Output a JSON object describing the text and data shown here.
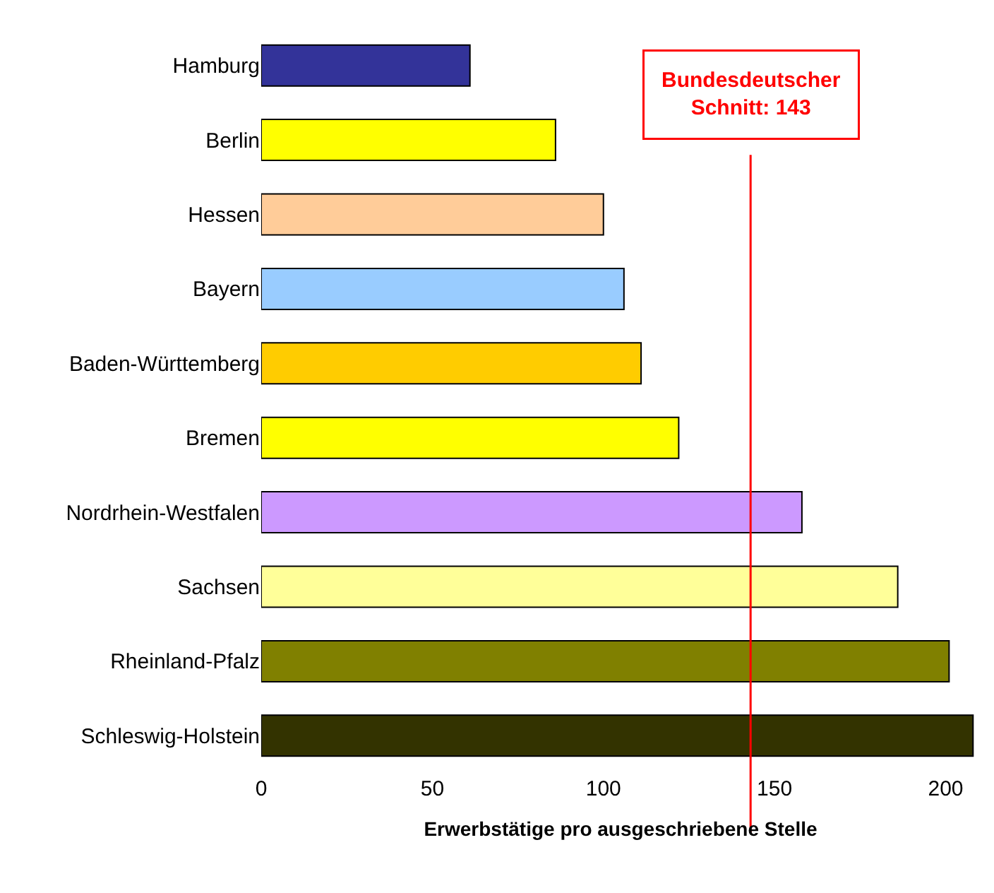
{
  "chart_data": {
    "type": "bar",
    "orientation": "horizontal",
    "categories": [
      "Hamburg",
      "Berlin",
      "Hessen",
      "Bayern",
      "Baden-Württemberg",
      "Bremen",
      "Nordrhein-Westfalen",
      "Sachsen",
      "Rheinland-Pfalz",
      "Schleswig-Holstein"
    ],
    "values": [
      61,
      86,
      100,
      106,
      111,
      122,
      158,
      186,
      201,
      208
    ],
    "colors": [
      "#333399",
      "#ffff00",
      "#ffcc99",
      "#99ccff",
      "#ffcc00",
      "#ffff00",
      "#cc99ff",
      "#ffff99",
      "#808000",
      "#333300"
    ],
    "xlim": [
      0,
      210
    ],
    "xticks": [
      0,
      50,
      100,
      150,
      200
    ],
    "legend": false,
    "xlabel": "Erwerbstätige pro ausgeschriebene Stelle",
    "ref_lines": [
      {
        "axis": "x",
        "value": 143,
        "label": "Bundesdeutscher\nSchnitt: 143",
        "color": "#ff0000"
      }
    ]
  }
}
